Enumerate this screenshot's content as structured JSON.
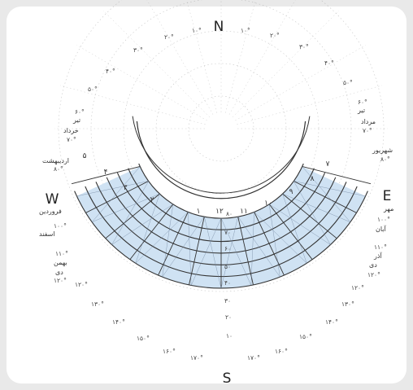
{
  "directions": {
    "north": "N",
    "south": "S",
    "east": "E",
    "west": "W"
  },
  "azimuth_labels": [
    "۱۰°",
    "۲۰°",
    "۳۰°",
    "۴۰°",
    "۵۰°",
    "۳۰°",
    "۲۰°",
    "۱۰°",
    "۴۰°",
    "۵۰°",
    "۱۲۰°",
    "۱۳۰°",
    "۱۴۰°",
    "۱۵۰°",
    "۱۶۰°",
    "۱۷۰°",
    "۱۷۰°",
    "۱۶۰°",
    "۱۵۰°",
    "۱۴۰°",
    "۱۳۰°",
    "۱۲۰°"
  ],
  "altitude_labels": [
    "۱۰",
    "۲۰",
    "۳۰",
    "۴۰",
    "۵۰",
    "۶۰",
    "۷۰",
    "۸۰"
  ],
  "hour_labels": [
    "۱۲",
    "۱",
    "۲",
    "۳",
    "۴",
    "۵",
    "۱۱",
    "۱۰",
    "۹",
    "۸",
    "۷"
  ],
  "left_dates": [
    {
      "name": "تیر",
      "deg": "۶۰°"
    },
    {
      "name": "خرداد",
      "deg": "۷۰°"
    },
    {
      "name": "اردیبهشت",
      "deg": "۸۰°"
    },
    {
      "name": "فروردین",
      "deg": ""
    },
    {
      "name": "اسفند",
      "deg": "۱۰۰°"
    },
    {
      "name": "بهمن",
      "deg": "۱۱۰°"
    },
    {
      "name": "دی",
      "deg": "۱۲۰°"
    }
  ],
  "right_dates": [
    {
      "name": "تیر",
      "deg": "۶۰°"
    },
    {
      "name": "مرداد",
      "deg": "۷۰°"
    },
    {
      "name": "شهریور",
      "deg": "۸۰°"
    },
    {
      "name": "مهر",
      "deg": ""
    },
    {
      "name": "آبان",
      "deg": "۱۰۰°"
    },
    {
      "name": "آذر",
      "deg": "۱۱۰°"
    },
    {
      "name": "دی",
      "deg": "۱۲۰°"
    }
  ],
  "colors": {
    "band_fill": "#cfe2f3",
    "line": "#333333",
    "grid": "#9a9a9a"
  }
}
